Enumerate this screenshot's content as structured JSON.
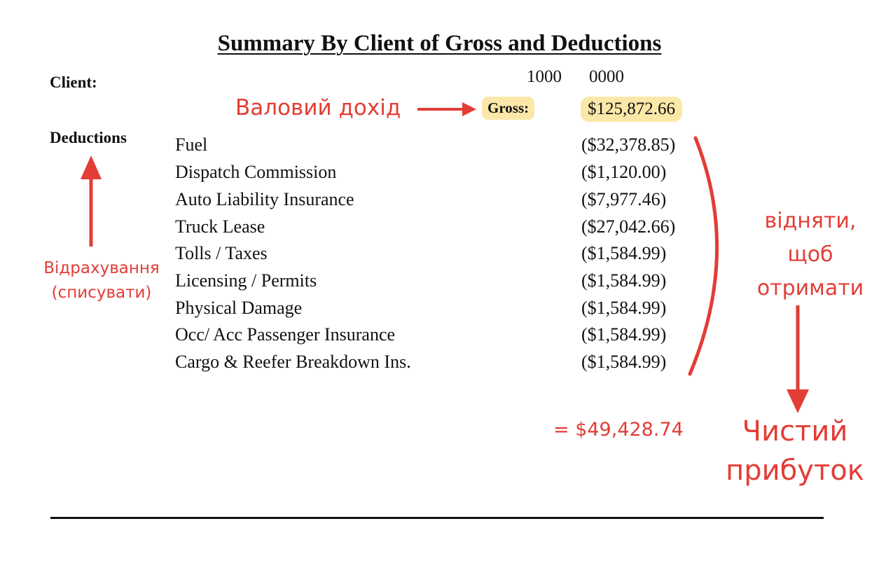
{
  "document": {
    "title": "Summary By Client of Gross and Deductions",
    "client_label": "Client:",
    "client_codes": [
      "1000",
      "0000"
    ],
    "gross_label": "Gross:",
    "gross_value": "$125,872.66",
    "deductions_label": "Deductions",
    "deductions": [
      {
        "name": "Fuel",
        "amount": "($32,378.85)"
      },
      {
        "name": "Dispatch Commission",
        "amount": "($1,120.00)"
      },
      {
        "name": "Auto Liability Insurance",
        "amount": "($7,977.46)"
      },
      {
        "name": "Truck Lease",
        "amount": "($27,042.66)"
      },
      {
        "name": "Tolls / Taxes",
        "amount": "($1,584.99)"
      },
      {
        "name": "Licensing / Permits",
        "amount": "($1,584.99)"
      },
      {
        "name": "Physical Damage",
        "amount": "($1,584.99)"
      },
      {
        "name": "Occ/ Acc Passenger Insurance",
        "amount": "($1,584.99)"
      },
      {
        "name": "Cargo & Reefer Breakdown Ins.",
        "amount": "($1,584.99)"
      }
    ]
  },
  "annotations": {
    "color": "#e23d36",
    "gross_note": "Валовий дохід",
    "deductions_note_line1": "Відрахування",
    "deductions_note_line2": "(списувати)",
    "subtract_note_line1": "відняти,",
    "subtract_note_line2": "щоб",
    "subtract_note_line3": "отримати",
    "result": "= $49,428.74",
    "net_note_line1": "Чистий",
    "net_note_line2": "прибуток"
  },
  "colors": {
    "highlight": "#fbe7a8",
    "text": "#111111"
  }
}
